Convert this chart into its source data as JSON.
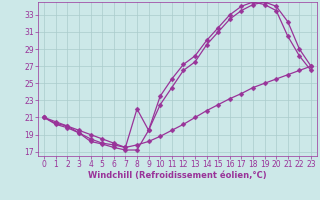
{
  "xlabel": "Windchill (Refroidissement éolien,°C)",
  "background_color": "#cce8e8",
  "line_color": "#993399",
  "xlim": [
    -0.5,
    23.5
  ],
  "ylim": [
    16.5,
    34.5
  ],
  "yticks": [
    17,
    19,
    21,
    23,
    25,
    27,
    29,
    31,
    33
  ],
  "xticks": [
    0,
    1,
    2,
    3,
    4,
    5,
    6,
    7,
    8,
    9,
    10,
    11,
    12,
    13,
    14,
    15,
    16,
    17,
    18,
    19,
    20,
    21,
    22,
    23
  ],
  "line1_x": [
    0,
    1,
    2,
    3,
    4,
    5,
    6,
    7,
    8,
    9,
    10,
    11,
    12,
    13,
    14,
    15,
    16,
    17,
    18,
    19,
    20,
    21,
    22,
    23
  ],
  "line1_y": [
    21,
    20.2,
    19.8,
    19.2,
    18.2,
    17.9,
    17.5,
    17.2,
    17.2,
    19.5,
    22.5,
    24.5,
    26.5,
    27.5,
    29.5,
    31.0,
    32.5,
    33.5,
    34.2,
    34.5,
    34.0,
    32.2,
    29.0,
    27.0
  ],
  "line2_x": [
    0,
    1,
    2,
    3,
    4,
    5,
    6,
    7,
    8,
    9,
    10,
    11,
    12,
    13,
    14,
    15,
    16,
    17,
    18,
    19,
    20,
    21,
    22,
    23
  ],
  "line2_y": [
    21,
    20.3,
    20.0,
    19.2,
    18.5,
    18.0,
    17.8,
    17.5,
    22.0,
    19.5,
    23.5,
    25.5,
    27.2,
    28.2,
    30.0,
    31.5,
    33.0,
    34.0,
    34.5,
    34.2,
    33.5,
    30.5,
    28.2,
    26.5
  ],
  "line3_x": [
    0,
    1,
    2,
    3,
    4,
    5,
    6,
    7,
    8,
    9,
    10,
    11,
    12,
    13,
    14,
    15,
    16,
    17,
    18,
    19,
    20,
    21,
    22,
    23
  ],
  "line3_y": [
    21,
    20.5,
    20.0,
    19.5,
    19.0,
    18.5,
    18.0,
    17.5,
    17.8,
    18.2,
    18.8,
    19.5,
    20.2,
    21.0,
    21.8,
    22.5,
    23.2,
    23.8,
    24.5,
    25.0,
    25.5,
    26.0,
    26.5,
    27.0
  ],
  "markersize": 2.5,
  "linewidth": 0.9,
  "grid_color": "#aacccc",
  "tick_fontsize": 5.5,
  "xlabel_fontsize": 6.0
}
